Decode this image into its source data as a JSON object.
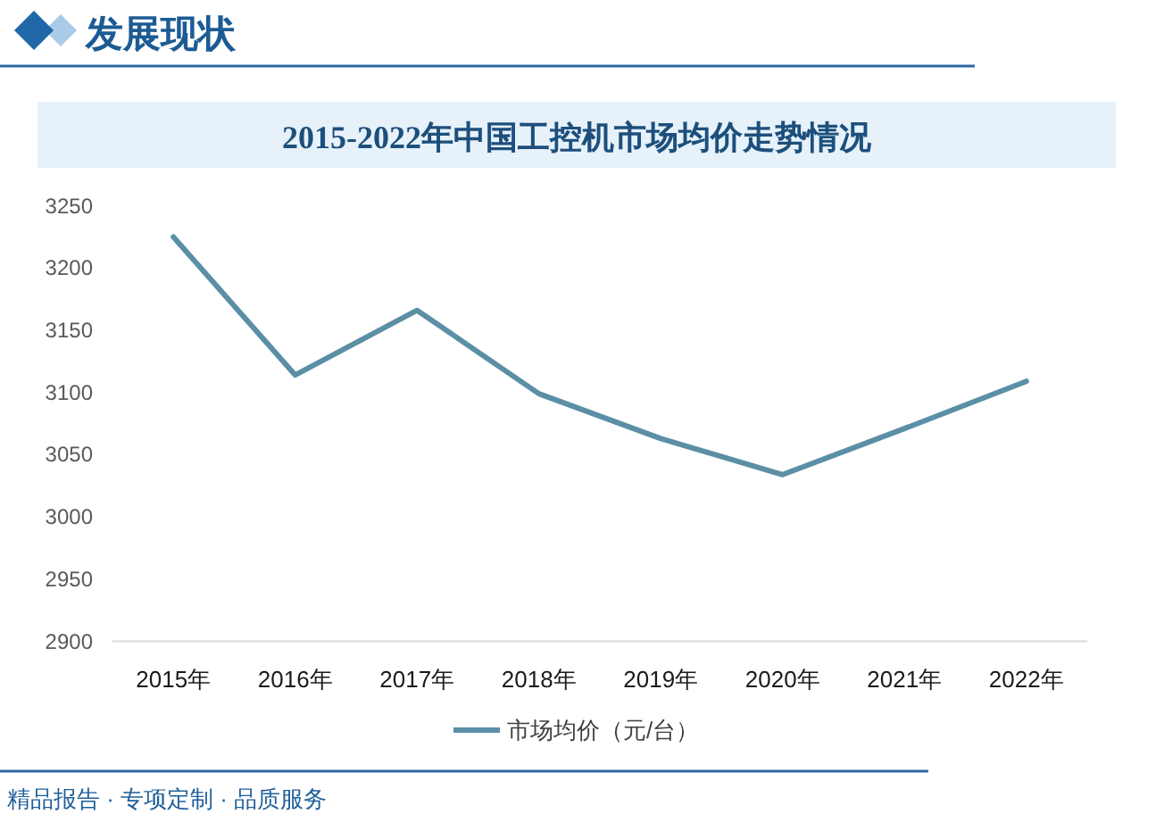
{
  "chart_data": {
    "type": "line",
    "title": "2015-2022年中国工控机市场均价走势情况",
    "categories": [
      "2015年",
      "2016年",
      "2017年",
      "2018年",
      "2019年",
      "2020年",
      "2021年",
      "2022年"
    ],
    "series": [
      {
        "name": "市场均价（元/台）",
        "color": "#5b8fa6",
        "values": [
          3225,
          3114,
          3166,
          3099,
          3063,
          3034,
          3071,
          3109
        ]
      }
    ],
    "ylim": [
      2900,
      3250
    ],
    "yticks": [
      2900,
      2950,
      3000,
      3050,
      3100,
      3150,
      3200,
      3250
    ],
    "grid": false,
    "legend": "bottom",
    "marker": "none",
    "line_style": "solid",
    "annotations": [
      "发展现状",
      "精品报告 · 专项定制 · 品质服务"
    ]
  }
}
